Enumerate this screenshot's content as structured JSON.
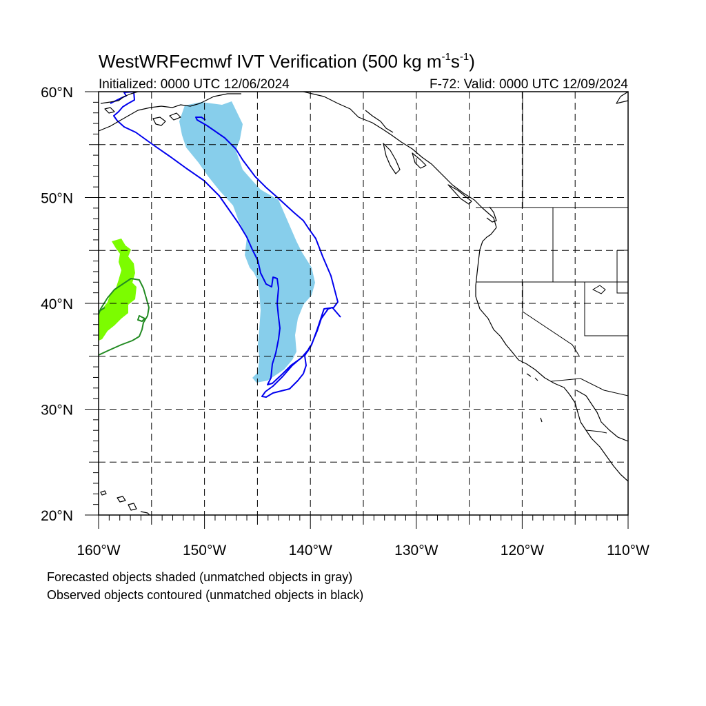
{
  "title": {
    "text": "WestWRFecmwf IVT Verification (500 kg m",
    "sup1": "-1",
    "mid": "s",
    "sup2": "-1",
    "end": ")"
  },
  "subtitle": {
    "left": "Initialized: 0000 UTC 12/06/2024",
    "right": "F-72: Valid: 0000 UTC 12/09/2024"
  },
  "map": {
    "lon_range": [
      -160,
      -110
    ],
    "lat_range": [
      20,
      60
    ],
    "lat_ticks": [
      {
        "value": 60,
        "label": "60°N"
      },
      {
        "value": 50,
        "label": "50°N"
      },
      {
        "value": 40,
        "label": "40°N"
      },
      {
        "value": 30,
        "label": "30°N"
      },
      {
        "value": 20,
        "label": "20°N"
      }
    ],
    "lon_ticks": [
      {
        "value": -160,
        "label": "160°W"
      },
      {
        "value": -150,
        "label": "150°W"
      },
      {
        "value": -140,
        "label": "140°W"
      },
      {
        "value": -130,
        "label": "130°W"
      },
      {
        "value": -120,
        "label": "120°W"
      },
      {
        "value": -110,
        "label": "110°W"
      }
    ],
    "grid_step_deg": 5,
    "grid": "dashed",
    "colors": {
      "forecast_object_1": "#87ceeb",
      "observed_object_1": "#0000ee",
      "forecast_object_2": "#7cfc00",
      "observed_object_2": "#228b22",
      "coastline": "#000000"
    }
  },
  "notes": {
    "line1": "Forecasted objects shaded (unmatched objects in gray)",
    "line2": "Observed objects contoured (unmatched objects in black)"
  }
}
